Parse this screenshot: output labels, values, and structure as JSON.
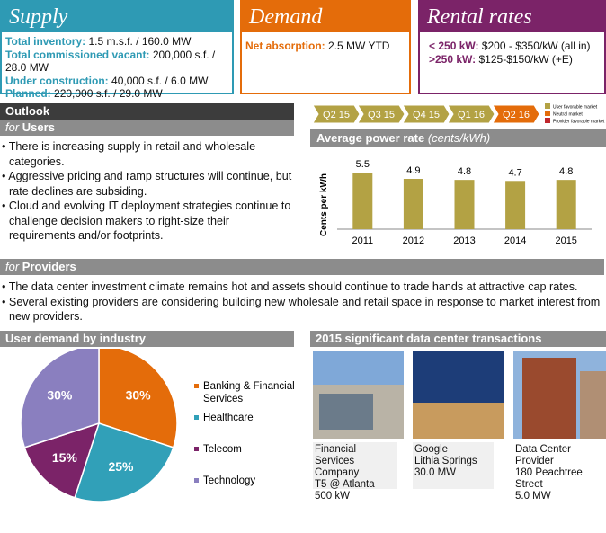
{
  "supply": {
    "title": "Supply",
    "items": [
      {
        "label": "Total inventory:",
        "value": "1.5 m.s.f. / 160.0 MW"
      },
      {
        "label": "Total commissioned vacant:",
        "value": "200,000 s.f. / 28.0 MW"
      },
      {
        "label": "Under construction:",
        "value": "40,000 s.f. / 6.0 MW"
      },
      {
        "label": "Planned:",
        "value": "220,000 s.f. / 29.0 MW"
      }
    ]
  },
  "demand": {
    "title": "Demand",
    "items": [
      {
        "label": "Net absorption:",
        "value": "2.5 MW YTD"
      }
    ]
  },
  "rental": {
    "title": "Rental rates",
    "items": [
      {
        "label": "< 250 kW:",
        "value": "$200 - $350/kW (all in)"
      },
      {
        "label": ">250 kW:",
        "value": "$125-$150/kW (+E)"
      }
    ]
  },
  "outlook": {
    "title": "Outlook",
    "users_prefix": "for",
    "users_heading": "Users",
    "users_bullets": [
      "There is increasing supply in retail and wholesale categories.",
      "Aggressive pricing and ramp structures will continue, but rate declines are subsiding.",
      "Cloud and evolving IT deployment strategies continue to challenge decision makers to right-size their requirements and/or footprints."
    ],
    "providers_prefix": "for",
    "providers_heading": "Providers",
    "providers_bullets": [
      "The data center investment climate remains hot and assets should continue to trade hands at attractive cap rates.",
      "Several existing providers are considering building new wholesale and retail space in response to market interest from new providers."
    ]
  },
  "quarters": {
    "labels": [
      "Q2 15",
      "Q3 15",
      "Q4 15",
      "Q1 16",
      "Q2 16"
    ],
    "colors": [
      "#b3a244",
      "#b3a244",
      "#b3a244",
      "#b3a244",
      "#e46c0a"
    ],
    "legend": [
      {
        "name": "User favorable market",
        "color": "#b3a244"
      },
      {
        "name": "Neutral market",
        "color": "#e46c0a"
      },
      {
        "name": "Provider favorable market",
        "color": "#c0272d"
      }
    ]
  },
  "power_rate_chart": {
    "type": "bar",
    "title": "Average power rate",
    "subtitle": "(cents/kWh)",
    "y_label": "Cents per kWh",
    "categories": [
      "2011",
      "2012",
      "2013",
      "2014",
      "2015"
    ],
    "values": [
      5.5,
      4.9,
      4.8,
      4.7,
      4.8
    ],
    "color": "#b3a244",
    "ylim": [
      0,
      7
    ]
  },
  "industry_chart": {
    "type": "pie",
    "title": "User demand by industry",
    "categories": [
      "Banking & Financial Services",
      "Healthcare",
      "Telecom",
      "Technology"
    ],
    "values": [
      30,
      25,
      15,
      30
    ],
    "value_labels": [
      "30%",
      "25%",
      "15%",
      "30%"
    ],
    "colors": [
      "#e46c0a",
      "#31a0b8",
      "#7b2368",
      "#8a7fbf"
    ]
  },
  "transactions": {
    "title": "2015 significant data center transactions",
    "items": [
      {
        "lines": [
          "Financial Services",
          "Company",
          "T5 @ Atlanta",
          "500 kW"
        ]
      },
      {
        "lines": [
          "Google",
          "Lithia Springs",
          "30.0 MW"
        ]
      },
      {
        "lines": [
          "Data Center Provider",
          "180 Peachtree Street",
          "5.0 MW"
        ]
      }
    ]
  }
}
